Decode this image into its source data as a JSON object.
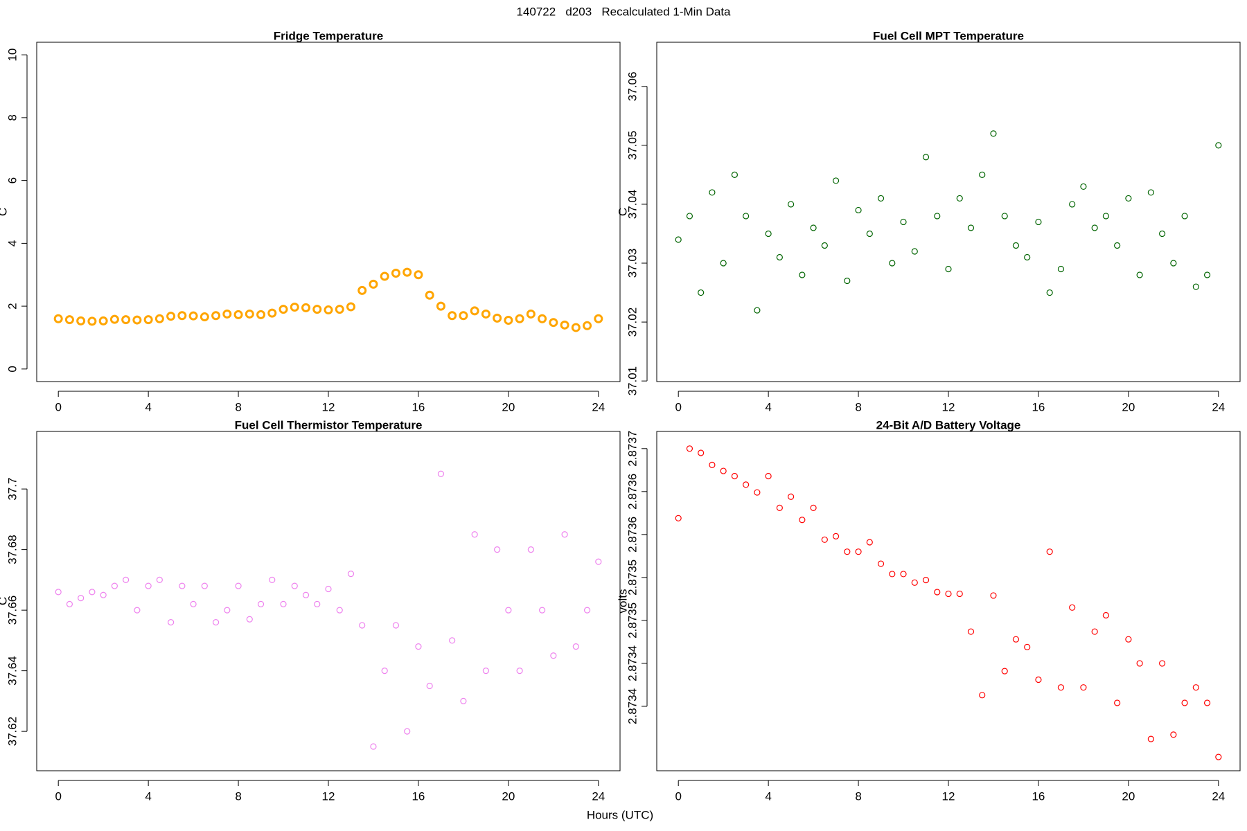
{
  "title": "140722   d203   Recalculated 1-Min Data",
  "x_label": "Hours (UTC)",
  "chart_data": [
    {
      "type": "scatter",
      "title": "Fridge Temperature",
      "y_label": "C",
      "color": "#FFA500",
      "xlim": [
        -0.96,
        24.96
      ],
      "xticks": [
        0,
        4,
        8,
        12,
        16,
        20,
        24
      ],
      "ylim": [
        -0.4,
        10.4
      ],
      "yticks": [
        0,
        2,
        4,
        6,
        8,
        10
      ],
      "x": [
        0,
        0.5,
        1,
        1.5,
        2,
        2.5,
        3,
        3.5,
        4,
        4.5,
        5,
        5.5,
        6,
        6.5,
        7,
        7.5,
        8,
        8.5,
        9,
        9.5,
        10,
        10.5,
        11,
        11.5,
        12,
        12.5,
        13,
        13.5,
        14,
        14.5,
        15,
        15.5,
        16,
        16.5,
        17,
        17.5,
        18,
        18.5,
        19,
        19.5,
        20,
        20.5,
        21,
        21.5,
        22,
        22.5,
        23,
        23.5,
        24
      ],
      "values": [
        1.6,
        1.57,
        1.53,
        1.52,
        1.53,
        1.58,
        1.57,
        1.56,
        1.57,
        1.6,
        1.68,
        1.7,
        1.69,
        1.66,
        1.7,
        1.75,
        1.73,
        1.75,
        1.73,
        1.78,
        1.9,
        1.97,
        1.95,
        1.9,
        1.88,
        1.9,
        1.98,
        2.5,
        2.7,
        2.95,
        3.05,
        3.08,
        3.0,
        2.35,
        2.0,
        1.7,
        1.7,
        1.85,
        1.75,
        1.62,
        1.55,
        1.6,
        1.75,
        1.6,
        1.48,
        1.4,
        1.32,
        1.38,
        1.6
      ]
    },
    {
      "type": "scatter",
      "title": "Fuel Cell MPT Temperature",
      "y_label": "C",
      "color": "#006400",
      "xlim": [
        -0.96,
        24.96
      ],
      "xticks": [
        0,
        4,
        8,
        12,
        16,
        20,
        24
      ],
      "ylim": [
        37.0099,
        37.0675
      ],
      "yticks": [
        37.01,
        37.02,
        37.03,
        37.04,
        37.05,
        37.06
      ],
      "x": [
        0,
        0.5,
        1,
        1.5,
        2,
        2.5,
        3,
        3.5,
        4,
        4.5,
        5,
        5.5,
        6,
        6.5,
        7,
        7.5,
        8,
        8.5,
        9,
        9.5,
        10,
        10.5,
        11,
        11.5,
        12,
        12.5,
        13,
        13.5,
        14,
        14.5,
        15,
        15.5,
        16,
        16.5,
        17,
        17.5,
        18,
        18.5,
        19,
        19.5,
        20,
        20.5,
        21,
        21.5,
        22,
        22.5,
        23,
        23.5,
        24
      ],
      "values": [
        37.034,
        37.038,
        37.025,
        37.042,
        37.03,
        37.045,
        37.038,
        37.022,
        37.035,
        37.031,
        37.04,
        37.028,
        37.036,
        37.033,
        37.044,
        37.027,
        37.039,
        37.035,
        37.041,
        37.03,
        37.037,
        37.032,
        37.048,
        37.038,
        37.029,
        37.041,
        37.036,
        37.045,
        37.052,
        37.038,
        37.033,
        37.031,
        37.037,
        37.025,
        37.029,
        37.04,
        37.043,
        37.036,
        37.038,
        37.033,
        37.041,
        37.028,
        37.042,
        37.035,
        37.03,
        37.038,
        37.026,
        37.028,
        37.05
      ]
    },
    {
      "type": "scatter",
      "title": "Fuel Cell Thermistor Temperature",
      "y_label": "C",
      "color": "#EE82EE",
      "xlim": [
        -0.96,
        24.96
      ],
      "xticks": [
        0,
        4,
        8,
        12,
        16,
        20,
        24
      ],
      "ylim": [
        37.607,
        37.719
      ],
      "yticks": [
        37.62,
        37.64,
        37.66,
        37.68,
        37.7
      ],
      "x": [
        0,
        0.5,
        1,
        1.5,
        2,
        2.5,
        3,
        3.5,
        4,
        4.5,
        5,
        5.5,
        6,
        6.5,
        7,
        7.5,
        8,
        8.5,
        9,
        9.5,
        10,
        10.5,
        11,
        11.5,
        12,
        12.5,
        13,
        13.5,
        14,
        14.5,
        15,
        15.5,
        16,
        16.5,
        17,
        17.5,
        18,
        18.5,
        19,
        19.5,
        20,
        20.5,
        21,
        21.5,
        22,
        22.5,
        23,
        23.5,
        24
      ],
      "values": [
        37.666,
        37.662,
        37.664,
        37.666,
        37.665,
        37.668,
        37.67,
        37.66,
        37.668,
        37.67,
        37.656,
        37.668,
        37.662,
        37.668,
        37.656,
        37.66,
        37.668,
        37.657,
        37.662,
        37.67,
        37.662,
        37.668,
        37.665,
        37.662,
        37.667,
        37.66,
        37.672,
        37.655,
        37.615,
        37.64,
        37.655,
        37.62,
        37.648,
        37.635,
        37.705,
        37.65,
        37.63,
        37.685,
        37.64,
        37.68,
        37.66,
        37.64,
        37.68,
        37.66,
        37.645,
        37.685,
        37.648,
        37.66,
        37.676
      ]
    },
    {
      "type": "scatter",
      "title": "24-Bit A/D Battery Voltage",
      "y_label": "volts",
      "color": "#FF0000",
      "xlim": [
        -0.96,
        24.96
      ],
      "xticks": [
        0,
        4,
        8,
        12,
        16,
        20,
        24
      ],
      "ylim": [
        2.873325,
        2.87372
      ],
      "yticks": [
        2.8734,
        {
          "value": 2.87345,
          "label": "2.8734"
        },
        2.8735,
        {
          "value": 2.87355,
          "label": "2.8735"
        },
        2.8736,
        {
          "value": 2.87365,
          "label": "2.8736"
        },
        2.8737
      ],
      "x": [
        0,
        0.5,
        1,
        1.5,
        2,
        2.5,
        3,
        3.5,
        4,
        4.5,
        5,
        5.5,
        6,
        6.5,
        7,
        7.5,
        8,
        8.5,
        9,
        9.5,
        10,
        10.5,
        11,
        11.5,
        12,
        12.5,
        13,
        13.5,
        14,
        14.5,
        15,
        15.5,
        16,
        16.5,
        17,
        17.5,
        18,
        18.5,
        19,
        19.5,
        20,
        20.5,
        21,
        21.5,
        22,
        22.5,
        23,
        23.5,
        24
      ],
      "values": [
        2.873619,
        2.8737,
        2.873695,
        2.873681,
        2.873674,
        2.873668,
        2.873658,
        2.873649,
        2.873668,
        2.873631,
        2.873644,
        2.873617,
        2.873631,
        2.873594,
        2.873598,
        2.87358,
        2.87358,
        2.873591,
        2.873566,
        2.873554,
        2.873554,
        2.873544,
        2.873547,
        2.873533,
        2.873531,
        2.873531,
        2.873487,
        2.873413,
        2.873529,
        2.873441,
        2.873478,
        2.873469,
        2.873431,
        2.87358,
        2.873422,
        2.873515,
        2.873422,
        2.873487,
        2.873506,
        2.873404,
        2.873478,
        2.87345,
        2.873362,
        2.87345,
        2.873367,
        2.873404,
        2.873422,
        2.873404,
        2.873341
      ]
    }
  ]
}
